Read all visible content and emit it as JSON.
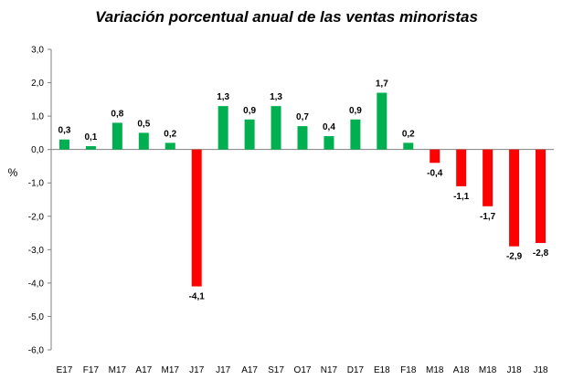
{
  "chart_data": {
    "type": "bar",
    "title": "Variación porcentual anual de las ventas minoristas",
    "xlabel": "",
    "ylabel": "%",
    "ylim": [
      -6.0,
      3.0
    ],
    "yticks": [
      "3,0",
      "2,0",
      "1,0",
      "0,0",
      "-1,0",
      "-2,0",
      "-3,0",
      "-4,0",
      "-5,0",
      "-6,0"
    ],
    "grid": false,
    "legend": "none",
    "categories": [
      "E17",
      "F17",
      "M17",
      "A17",
      "M17",
      "J17",
      "J17",
      "A17",
      "S17",
      "O17",
      "N17",
      "D17",
      "E18",
      "F18",
      "M18",
      "A18",
      "M18",
      "J18",
      "J18"
    ],
    "values": [
      0.3,
      0.1,
      0.8,
      0.5,
      0.2,
      -4.1,
      1.3,
      0.9,
      1.3,
      0.7,
      0.4,
      0.9,
      1.7,
      0.2,
      -0.4,
      -1.1,
      -1.7,
      -2.9,
      -2.8
    ],
    "value_labels": [
      "0,3",
      "0,1",
      "0,8",
      "0,5",
      "0,2",
      "-4,1",
      "1,3",
      "0,9",
      "1,3",
      "0,7",
      "0,4",
      "0,9",
      "1,7",
      "0,2",
      "-0,4",
      "-1,1",
      "-1,7",
      "-2,9",
      "-2,8"
    ],
    "colors": {
      "positive": "#00b050",
      "negative": "#ff0000",
      "axis": "#808080"
    }
  }
}
